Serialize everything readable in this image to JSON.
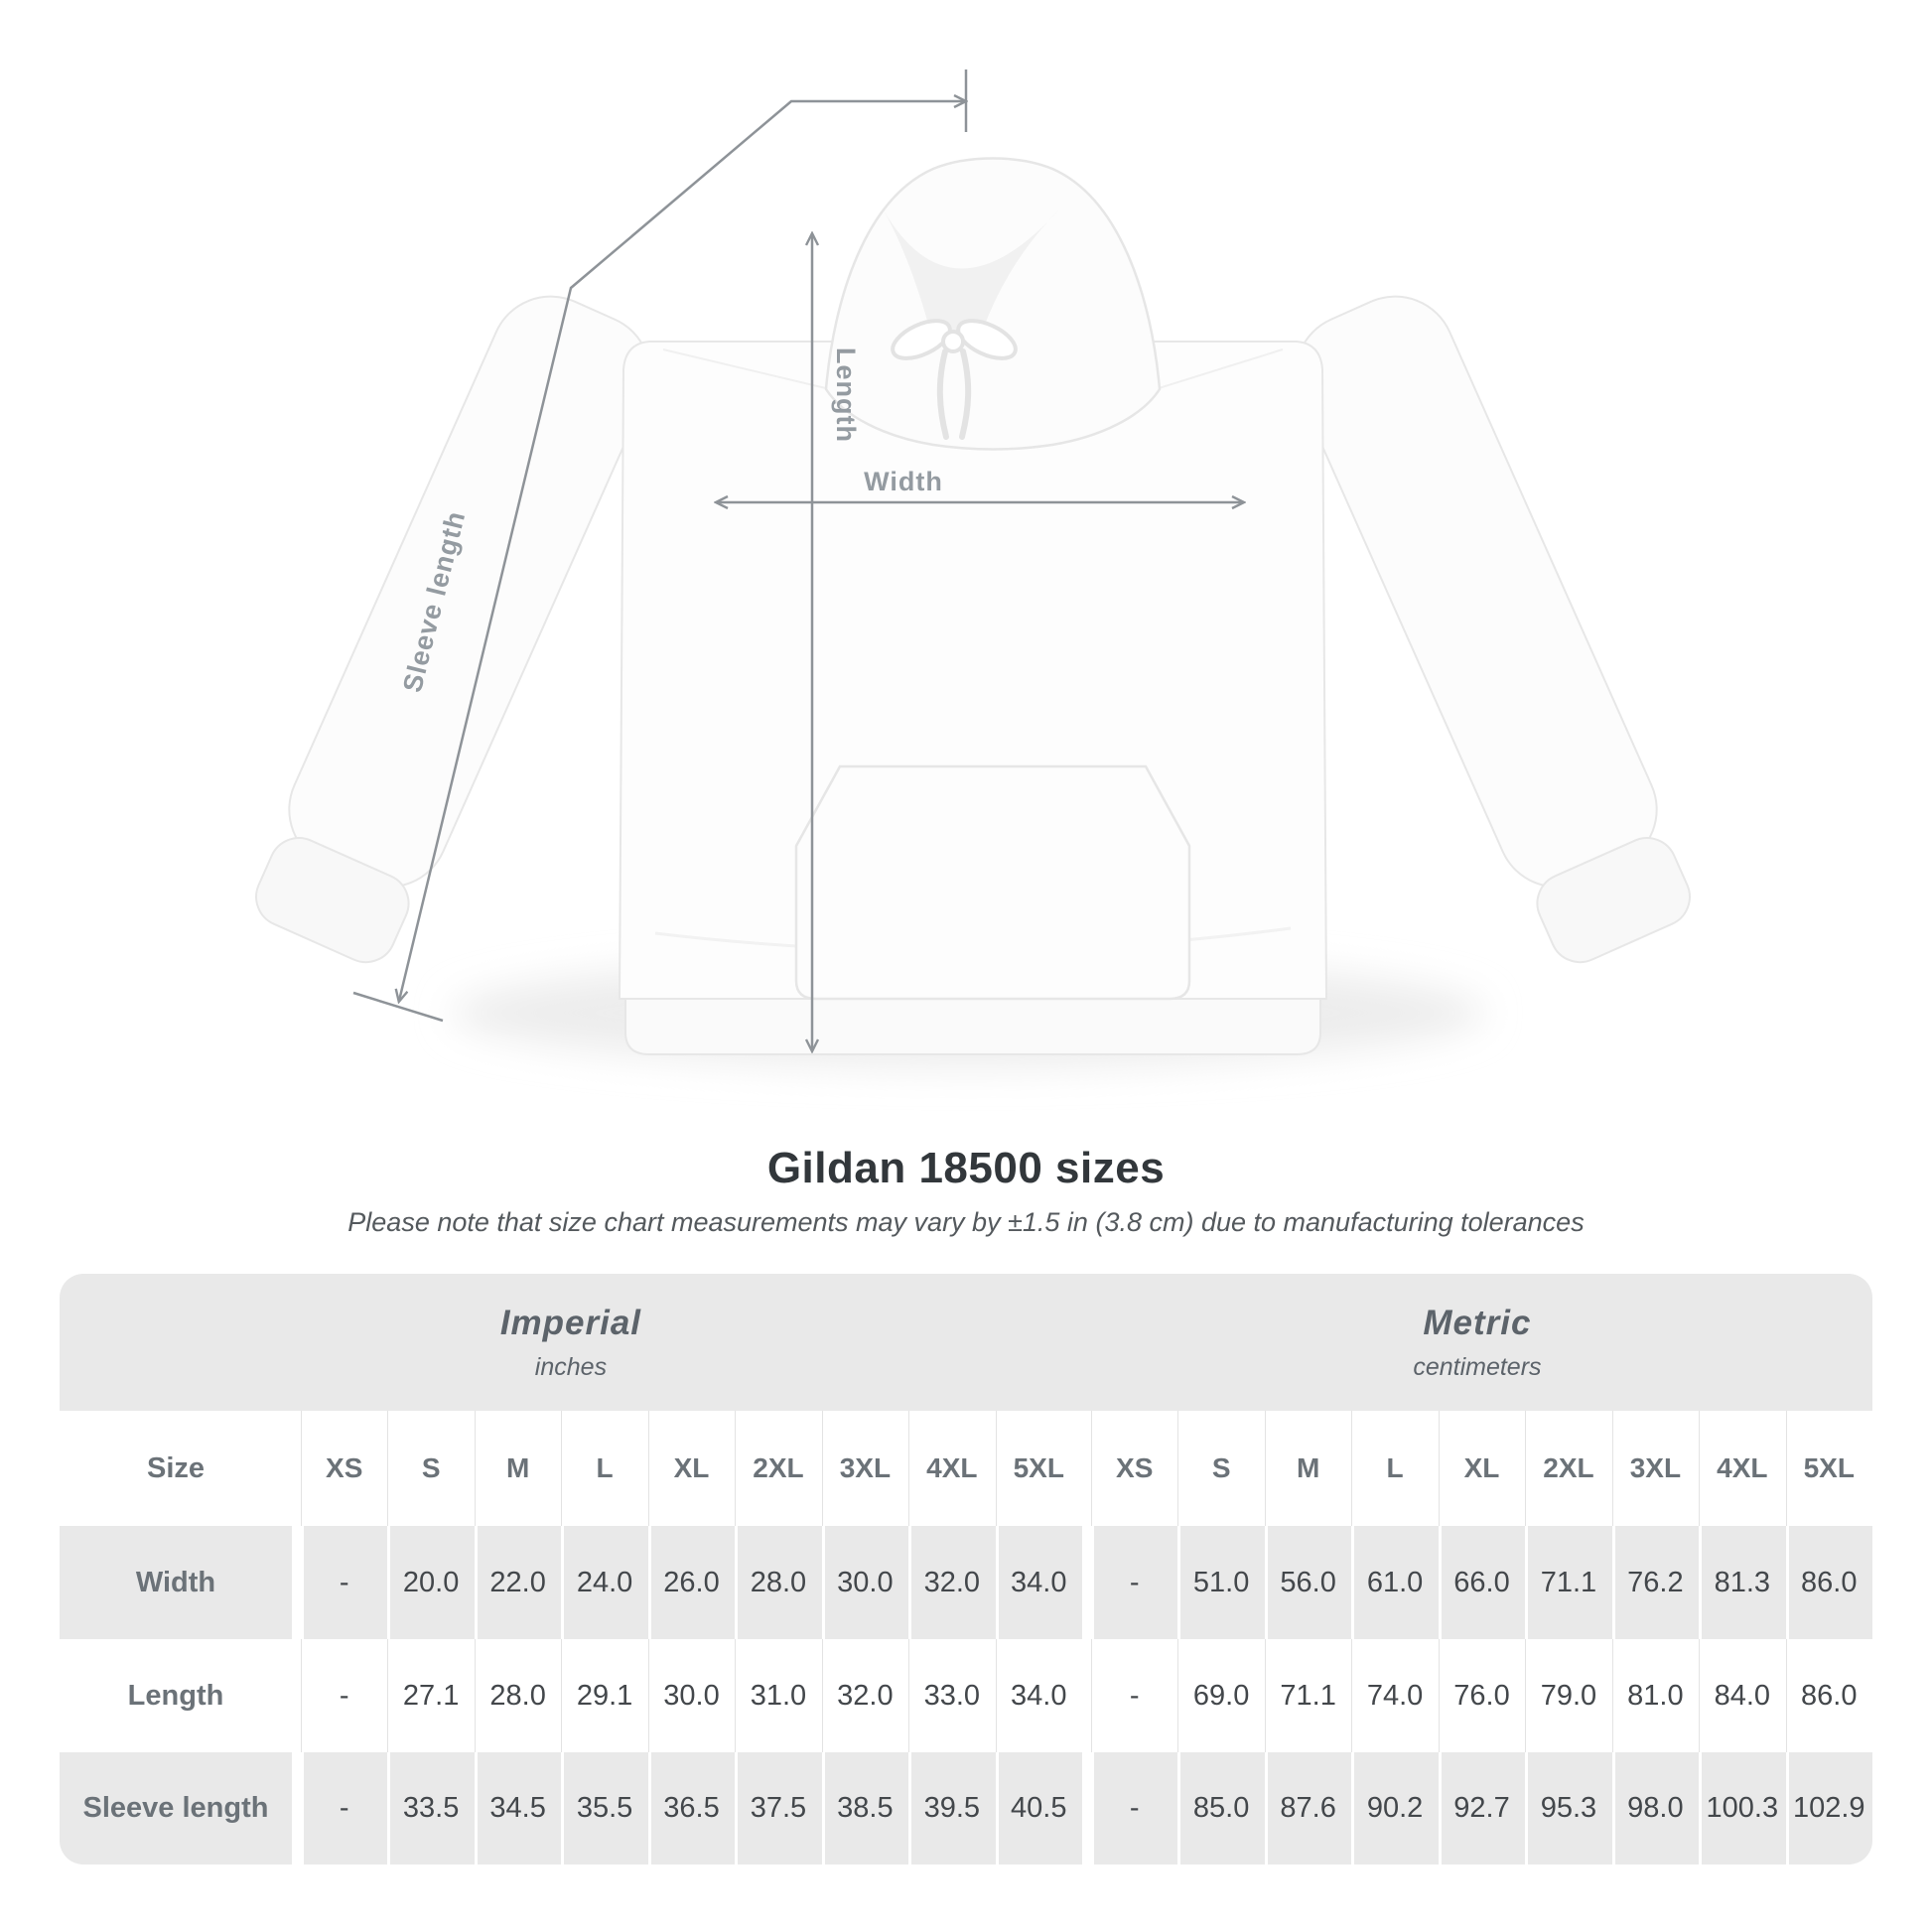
{
  "diagram": {
    "labels": {
      "sleeve_length": "Sleeve length",
      "length": "Length",
      "width": "Width"
    }
  },
  "title": "Gildan 18500 sizes",
  "subtitle": "Please note that size chart measurements may vary by ±1.5 in (3.8 cm) due to manufacturing tolerances",
  "table": {
    "unit_headers": [
      {
        "name": "Imperial",
        "unit": "inches"
      },
      {
        "name": "Metric",
        "unit": "centimeters"
      }
    ],
    "size_header": "Size",
    "sizes": [
      "XS",
      "S",
      "M",
      "L",
      "XL",
      "2XL",
      "3XL",
      "4XL",
      "5XL"
    ],
    "rows": [
      {
        "label": "Width",
        "imperial": [
          "-",
          "20.0",
          "22.0",
          "24.0",
          "26.0",
          "28.0",
          "30.0",
          "32.0",
          "34.0"
        ],
        "metric": [
          "-",
          "51.0",
          "56.0",
          "61.0",
          "66.0",
          "71.1",
          "76.2",
          "81.3",
          "86.0"
        ]
      },
      {
        "label": "Length",
        "imperial": [
          "-",
          "27.1",
          "28.0",
          "29.1",
          "30.0",
          "31.0",
          "32.0",
          "33.0",
          "34.0"
        ],
        "metric": [
          "-",
          "69.0",
          "71.1",
          "74.0",
          "76.0",
          "79.0",
          "81.0",
          "84.0",
          "86.0"
        ]
      },
      {
        "label": "Sleeve length",
        "imperial": [
          "-",
          "33.5",
          "34.5",
          "35.5",
          "36.5",
          "37.5",
          "38.5",
          "39.5",
          "40.5"
        ],
        "metric": [
          "-",
          "85.0",
          "87.6",
          "90.2",
          "92.7",
          "95.3",
          "98.0",
          "100.3",
          "102.9"
        ]
      }
    ]
  },
  "colors": {
    "table_band_gray": "#e9e9e9",
    "value_text": "#43474b",
    "header_text": "#6b7278",
    "diagram_line_gray": "#8e9398",
    "diagram_label_gray": "#949ba1"
  }
}
